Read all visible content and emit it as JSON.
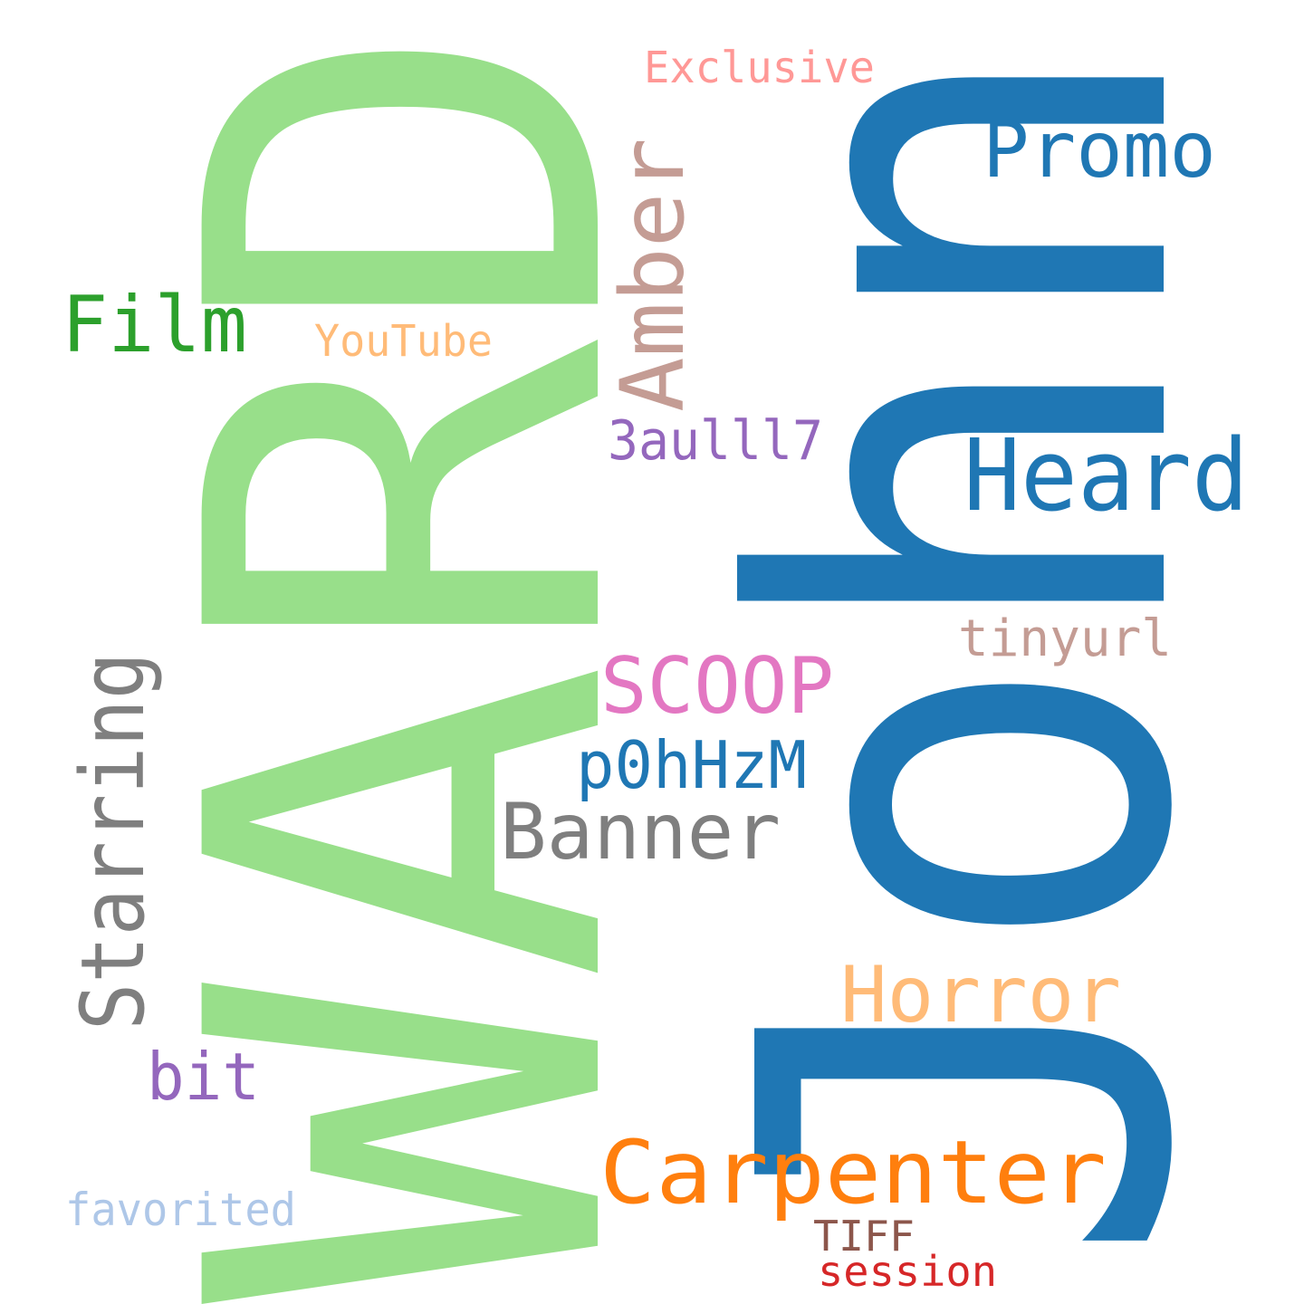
{
  "words": [
    {
      "text": "WARD",
      "color": "#98df8a"
    },
    {
      "text": "John",
      "color": "#1f77b4"
    },
    {
      "text": "Carpenter",
      "color": "#ff7f0e"
    },
    {
      "text": "Heard",
      "color": "#1f77b4"
    },
    {
      "text": "Amber",
      "color": "#c49c94"
    },
    {
      "text": "Starring",
      "color": "#7f7f7f"
    },
    {
      "text": "Banner",
      "color": "#7f7f7f"
    },
    {
      "text": "Horror",
      "color": "#ffbb78"
    },
    {
      "text": "SCOOP",
      "color": "#e377c2"
    },
    {
      "text": "Promo",
      "color": "#1f77b4"
    },
    {
      "text": "Film",
      "color": "#2ca02c"
    },
    {
      "text": "p0hHzM",
      "color": "#1f77b4"
    },
    {
      "text": "bit",
      "color": "#9467bd"
    },
    {
      "text": "3aulll7",
      "color": "#9467bd"
    },
    {
      "text": "tinyurl",
      "color": "#c49c94"
    },
    {
      "text": "favorited",
      "color": "#aec7e8"
    },
    {
      "text": "Exclusive",
      "color": "#ff9896"
    },
    {
      "text": "YouTube",
      "color": "#ffbb78"
    },
    {
      "text": "TIFF",
      "color": "#8c564b"
    },
    {
      "text": "session",
      "color": "#d62728"
    }
  ]
}
